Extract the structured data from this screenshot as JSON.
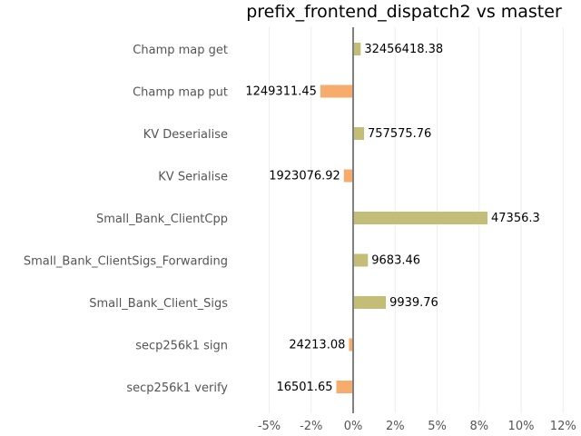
{
  "chart_data": {
    "type": "bar",
    "orientation": "horizontal",
    "title": "prefix_frontend_dispatch2 vs master",
    "xlabel": "",
    "ylabel": "",
    "xlim": [
      -0.07,
      0.127
    ],
    "grid": "vertical",
    "x_ticks": [
      {
        "value": -0.05,
        "label": "-5%"
      },
      {
        "value": -0.025,
        "label": "-2%"
      },
      {
        "value": 0,
        "label": "0%"
      },
      {
        "value": 0.025,
        "label": "2%"
      },
      {
        "value": 0.05,
        "label": "5%"
      },
      {
        "value": 0.075,
        "label": "8%"
      },
      {
        "value": 0.1,
        "label": "10%"
      },
      {
        "value": 0.125,
        "label": "12%"
      }
    ],
    "categories": [
      "Champ map get",
      "Champ map put",
      "KV Deserialise",
      "KV Serialise",
      "Small_Bank_ClientCpp",
      "Small_Bank_ClientSigs_Forwarding",
      "Small_Bank_Client_Sigs",
      "secp256k1 sign",
      "secp256k1 verify"
    ],
    "values": [
      0.0045,
      -0.0195,
      0.0065,
      -0.0055,
      0.08,
      0.0088,
      0.0195,
      -0.0025,
      -0.01
    ],
    "value_labels": [
      "32456418.38",
      "1249311.45",
      "757575.76",
      "1923076.92",
      "47356.3",
      "9683.46",
      "9939.76",
      "24213.08",
      "16501.65"
    ],
    "colors": {
      "positive": "#c4bd77",
      "negative": "#f5ac6d",
      "zero_line": "#808080",
      "grid": "#eeeeee"
    }
  }
}
